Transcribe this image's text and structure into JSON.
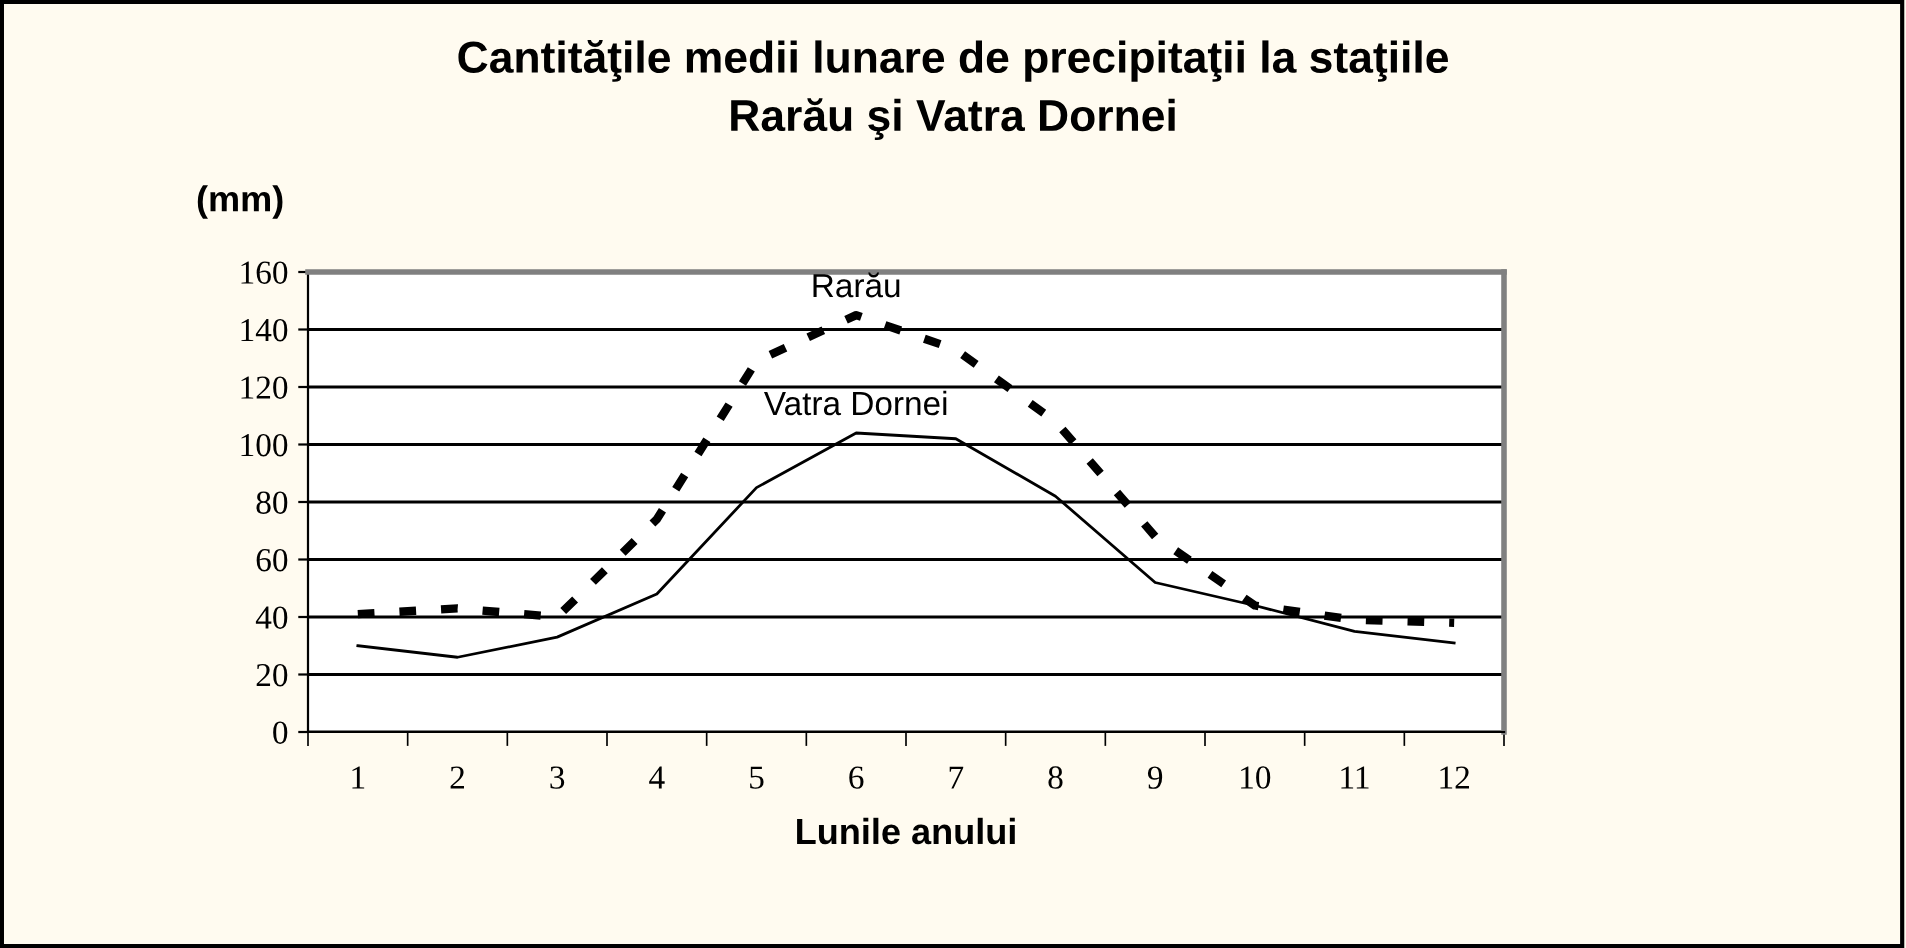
{
  "chart_data": {
    "type": "line",
    "title": "Cantităţile medii lunare de precipitaţii la staţiile\nRarău şi Vatra Dornei",
    "ylabel": "(mm)",
    "xlabel": "Lunile anului",
    "categories": [
      "1",
      "2",
      "3",
      "4",
      "5",
      "6",
      "7",
      "8",
      "9",
      "10",
      "11",
      "12"
    ],
    "series": [
      {
        "name": "Rarău",
        "color": "#000000",
        "line_style": "dashed",
        "values": [
          41,
          43,
          40,
          74,
          129,
          145,
          133,
          108,
          68,
          44,
          39,
          38
        ]
      },
      {
        "name": "Vatra Dornei",
        "color": "#000000",
        "line_style": "solid",
        "values": [
          30,
          26,
          33,
          48,
          85,
          104,
          102,
          82,
          52,
          44,
          35,
          31
        ]
      }
    ],
    "ylim": [
      0,
      160
    ],
    "yticks": [
      0,
      20,
      40,
      60,
      80,
      100,
      120,
      140,
      160
    ],
    "grid": "y",
    "legend": false
  }
}
